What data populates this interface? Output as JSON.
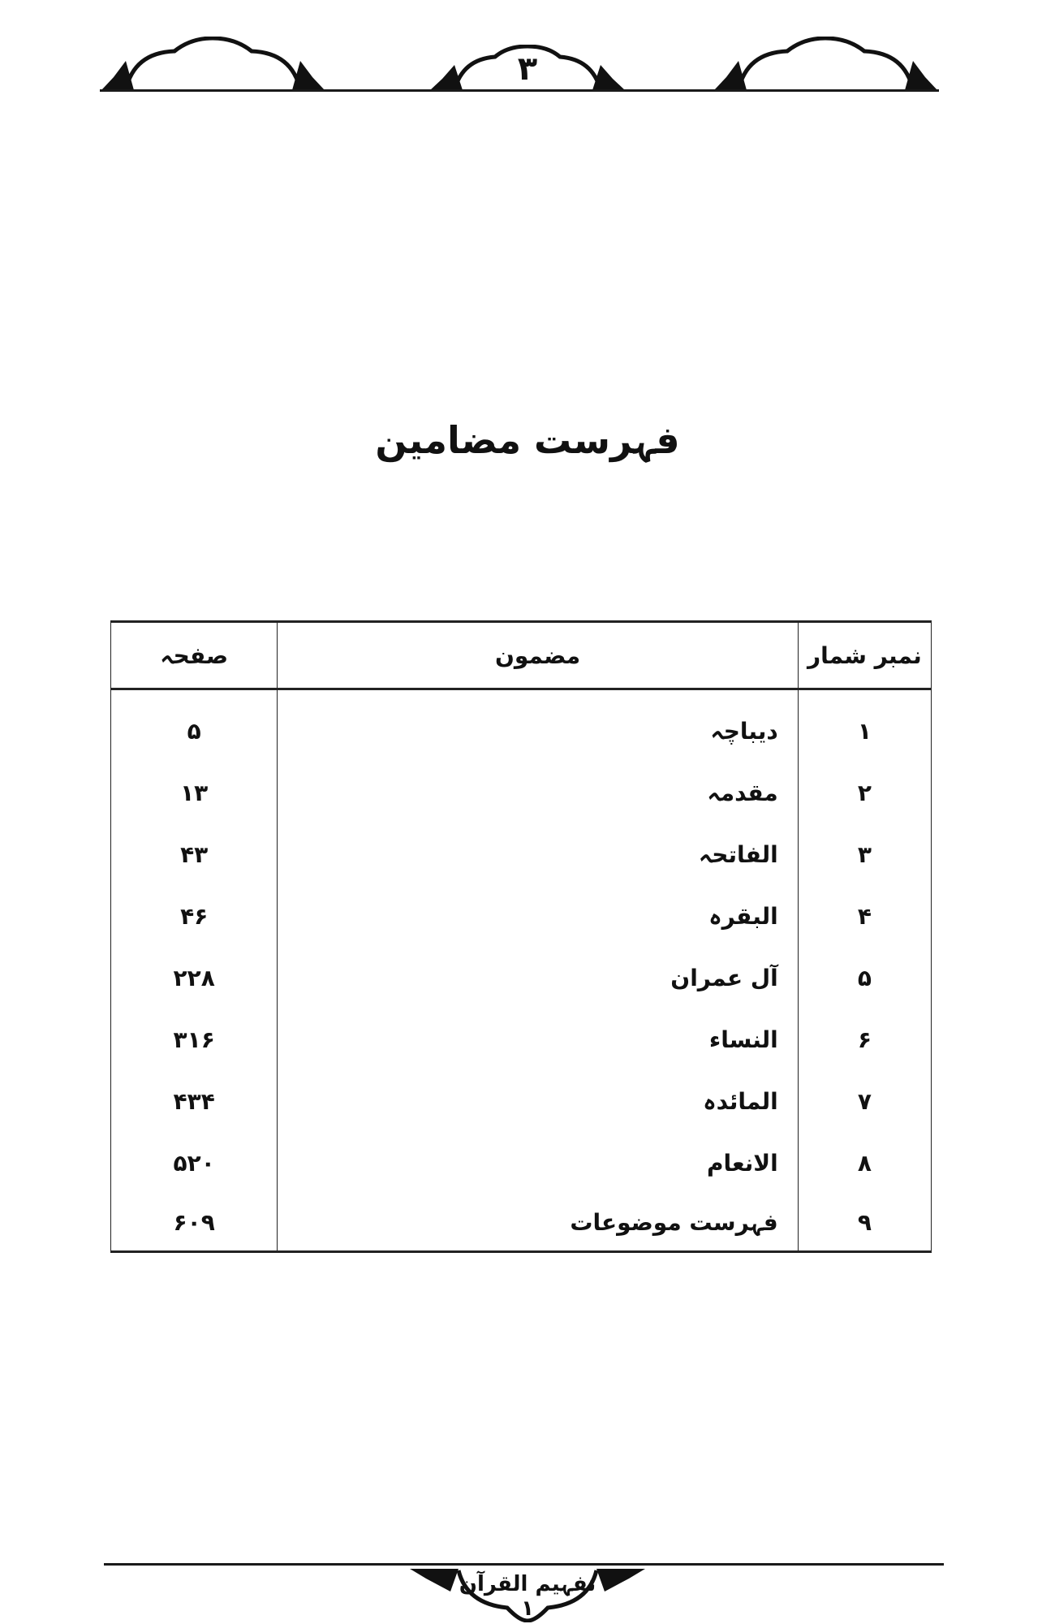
{
  "header": {
    "page_number": "۳",
    "ornament": "arch-ornament"
  },
  "title": "فہرست مضامین",
  "table": {
    "columns": [
      "نمبر شمار",
      "مضمون",
      "صفحہ"
    ],
    "rows": [
      {
        "num": "۱",
        "subject": "دیباچہ",
        "page": "۵"
      },
      {
        "num": "۲",
        "subject": "مقدمہ",
        "page": "۱۳"
      },
      {
        "num": "۳",
        "subject": "الفاتحہ",
        "page": "۴۳"
      },
      {
        "num": "۴",
        "subject": "البقرہ",
        "page": "۴۶"
      },
      {
        "num": "۵",
        "subject": "آل عمران",
        "page": "۲۲۸"
      },
      {
        "num": "۶",
        "subject": "النساء",
        "page": "۳۱۶"
      },
      {
        "num": "۷",
        "subject": "المائدہ",
        "page": "۴۳۴"
      },
      {
        "num": "۸",
        "subject": "الانعام",
        "page": "۵۲۰"
      },
      {
        "num": "۹",
        "subject": "فہرست موضوعات",
        "page": "۶۰۹"
      }
    ]
  },
  "footer": {
    "book_title": "تفہیم القرآن ۱"
  }
}
